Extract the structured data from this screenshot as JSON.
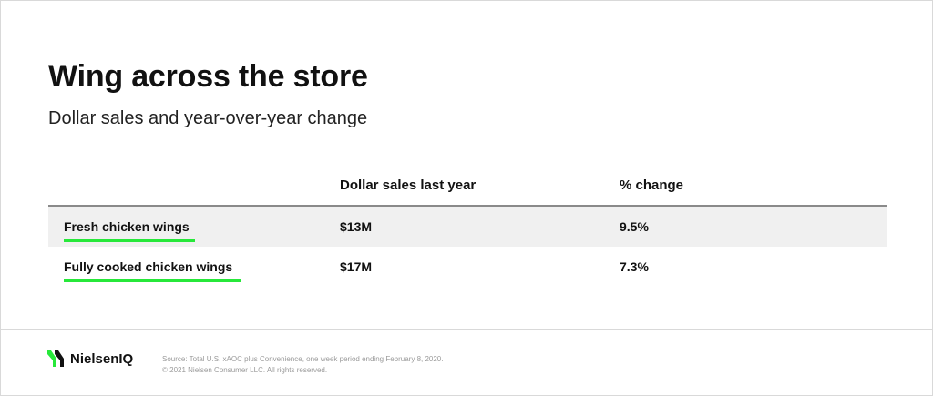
{
  "title": "Wing across the store",
  "subtitle": "Dollar sales and year-over-year change",
  "colors": {
    "accent": "#27e83a",
    "row_shade": "#f0f0f0",
    "rule": "#8a8a8a"
  },
  "chart_data": {
    "type": "table",
    "title": "Wing across the store",
    "subtitle": "Dollar sales and year-over-year change",
    "columns": [
      "",
      "Dollar sales last year",
      "% change"
    ],
    "rows": [
      {
        "product": "Fresh chicken wings",
        "dollar_sales": "$13M",
        "pct_change": "9.5%"
      },
      {
        "product": "Fully cooked chicken wings",
        "dollar_sales": "$17M",
        "pct_change": "7.3%"
      }
    ]
  },
  "footer": {
    "logo_text": "NielsenIQ",
    "logo_icon": "nielseniq-logo-icon",
    "source_line1": "Source: Total U.S. xAOC plus Convenience, one week period ending February 8, 2020.",
    "source_line2": "© 2021 Nielsen Consumer LLC. All rights reserved."
  }
}
